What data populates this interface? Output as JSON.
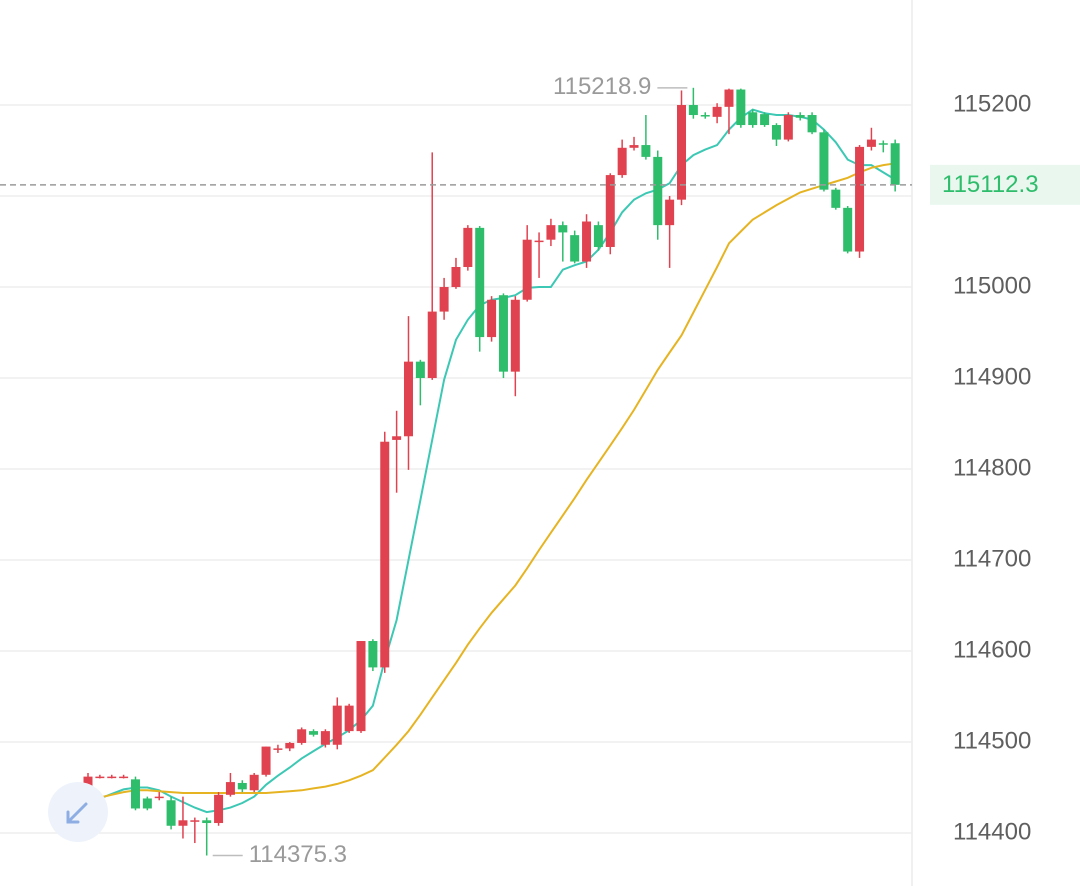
{
  "chart_data": {
    "type": "candlestick",
    "up_color": "#e0434f",
    "down_color": "#2ebd6b",
    "open": [
      114436,
      114462,
      114462,
      114462,
      114459,
      114438,
      114440,
      114436,
      114408,
      114414,
      114414,
      114411,
      114442,
      114455,
      114447,
      114464,
      114493,
      114493,
      114499,
      114512,
      114497,
      114497,
      114512,
      114512,
      114611,
      114582,
      114832,
      114836,
      114918,
      114900,
      114973,
      115000,
      115022,
      115065,
      114945,
      114991,
      114907,
      114986,
      115050,
      115052,
      115068,
      115057,
      115028,
      115068,
      115044,
      115123,
      115153,
      115156,
      115143,
      115068,
      115096,
      115200,
      115189,
      115187,
      115198,
      115217,
      115192,
      115190,
      115178,
      115162,
      115189,
      115189,
      115170,
      115107,
      115087,
      115039,
      115154,
      115158,
      115158
    ],
    "high": [
      114466,
      114464,
      114464,
      114464,
      114462,
      114440,
      114445,
      114440,
      114440,
      114417,
      114417,
      114445,
      114466,
      114458,
      114466,
      114495,
      114497,
      114500,
      114516,
      114514,
      114514,
      114549,
      114542,
      114611,
      114613,
      114841,
      114864,
      114968,
      114920,
      115148,
      115010,
      115032,
      115068,
      115067,
      114990,
      114993,
      114990,
      115068,
      115060,
      115075,
      115072,
      115062,
      115080,
      115072,
      115125,
      115162,
      115165,
      115189,
      115150,
      115100,
      115216,
      115218.9,
      115192,
      115202,
      115218,
      115218,
      115195,
      115192,
      115180,
      115192,
      115192,
      115192,
      115173,
      115109,
      115089,
      115156,
      115175,
      115161,
      115162
    ],
    "low": [
      114432,
      114460,
      114460,
      114460,
      114425,
      114425,
      114436,
      114404,
      114394,
      114389,
      114375.3,
      114408,
      114440,
      114445,
      114445,
      114462,
      114488,
      114490,
      114497,
      114506,
      114494,
      114492,
      114510,
      114510,
      114578,
      114576,
      114774,
      114799,
      114870,
      114898,
      114964,
      114998,
      115018,
      114929,
      114940,
      114900,
      114880,
      114984,
      115010,
      115045,
      115028,
      115026,
      115021,
      115040,
      115036,
      115120,
      115150,
      115140,
      115052,
      115021,
      115090,
      115185,
      115185,
      115180,
      115168,
      115175,
      115175,
      115176,
      115155,
      115160,
      115183,
      115168,
      115105,
      115085,
      115037,
      115032,
      115150,
      115148,
      115105
    ],
    "close": [
      114462,
      114462,
      114462,
      114462,
      114427,
      114427,
      114440,
      114408,
      114414,
      114414,
      114411,
      114442,
      114456,
      114448,
      114464,
      114495,
      114493,
      114499,
      114514,
      114508,
      114512,
      114540,
      114540,
      114611,
      114582,
      114830,
      114836,
      114918,
      114900,
      114973,
      115000,
      115022,
      115065,
      114945,
      114986,
      114907,
      114986,
      115052,
      115051,
      115068,
      115060,
      115028,
      115072,
      115044,
      115123,
      115153,
      115156,
      115143,
      115068,
      115096,
      115200,
      115189,
      115188,
      115198,
      115217,
      115178,
      115178,
      115178,
      115162,
      115189,
      115186,
      115170,
      115107,
      115087,
      115039,
      115154,
      115162,
      115157,
      115112.3
    ],
    "lines": [
      {
        "color": "#3cc8b4",
        "values": [
          114432,
          114438,
          114443,
          114448,
          114450,
          114450,
          114447,
          114440,
          114434,
          114428,
          114423,
          114425,
          114428,
          114433,
          114440,
          114453,
          114463,
          114472,
          114482,
          114490,
          114498,
          114505,
          114513,
          114524,
          114540,
          114590,
          114634,
          114700,
          114766,
          114832,
          114898,
          114942,
          114964,
          114980,
          114986,
          114988,
          114991,
          114999,
          115000,
          115000,
          115019,
          115024,
          115028,
          115041,
          115060,
          115082,
          115096,
          115103,
          115107,
          115114,
          115134,
          115145,
          115151,
          115156,
          115173,
          115186,
          115195,
          115191,
          115189,
          115189,
          115187,
          115184,
          115173,
          115159,
          115140,
          115134,
          115134,
          115126,
          115118
        ]
      },
      {
        "color": "#e6b422",
        "values": [
          114436,
          114439,
          114442,
          114445,
          114447,
          114447,
          114446,
          114445,
          114444,
          114444,
          114444,
          114444,
          114444,
          114444,
          114444,
          114444,
          114445,
          114446,
          114447,
          114449,
          114451,
          114454,
          114458,
          114463,
          114469,
          114483,
          114497,
          114512,
          114530,
          114549,
          114568,
          114587,
          114607,
          114625,
          114642,
          114657,
          114672,
          114691,
          114711,
          114730,
          114749,
          114768,
          114788,
          114807,
          114826,
          114845,
          114865,
          114887,
          114909,
          114928,
          114947,
          114972,
          114997,
          115022,
          115048,
          115061,
          115074,
          115082,
          115090,
          115097,
          115104,
          115108,
          115112,
          115116,
          115120,
          115126,
          115131,
          115134,
          115136
        ]
      }
    ],
    "ylim": [
      114341.8,
      115315.4
    ],
    "yticks": [
      114400,
      114500,
      114600,
      114700,
      114800,
      114900,
      115000,
      115100,
      115200
    ],
    "grid": true,
    "last_price_color": "#2ebd6b"
  }
}
